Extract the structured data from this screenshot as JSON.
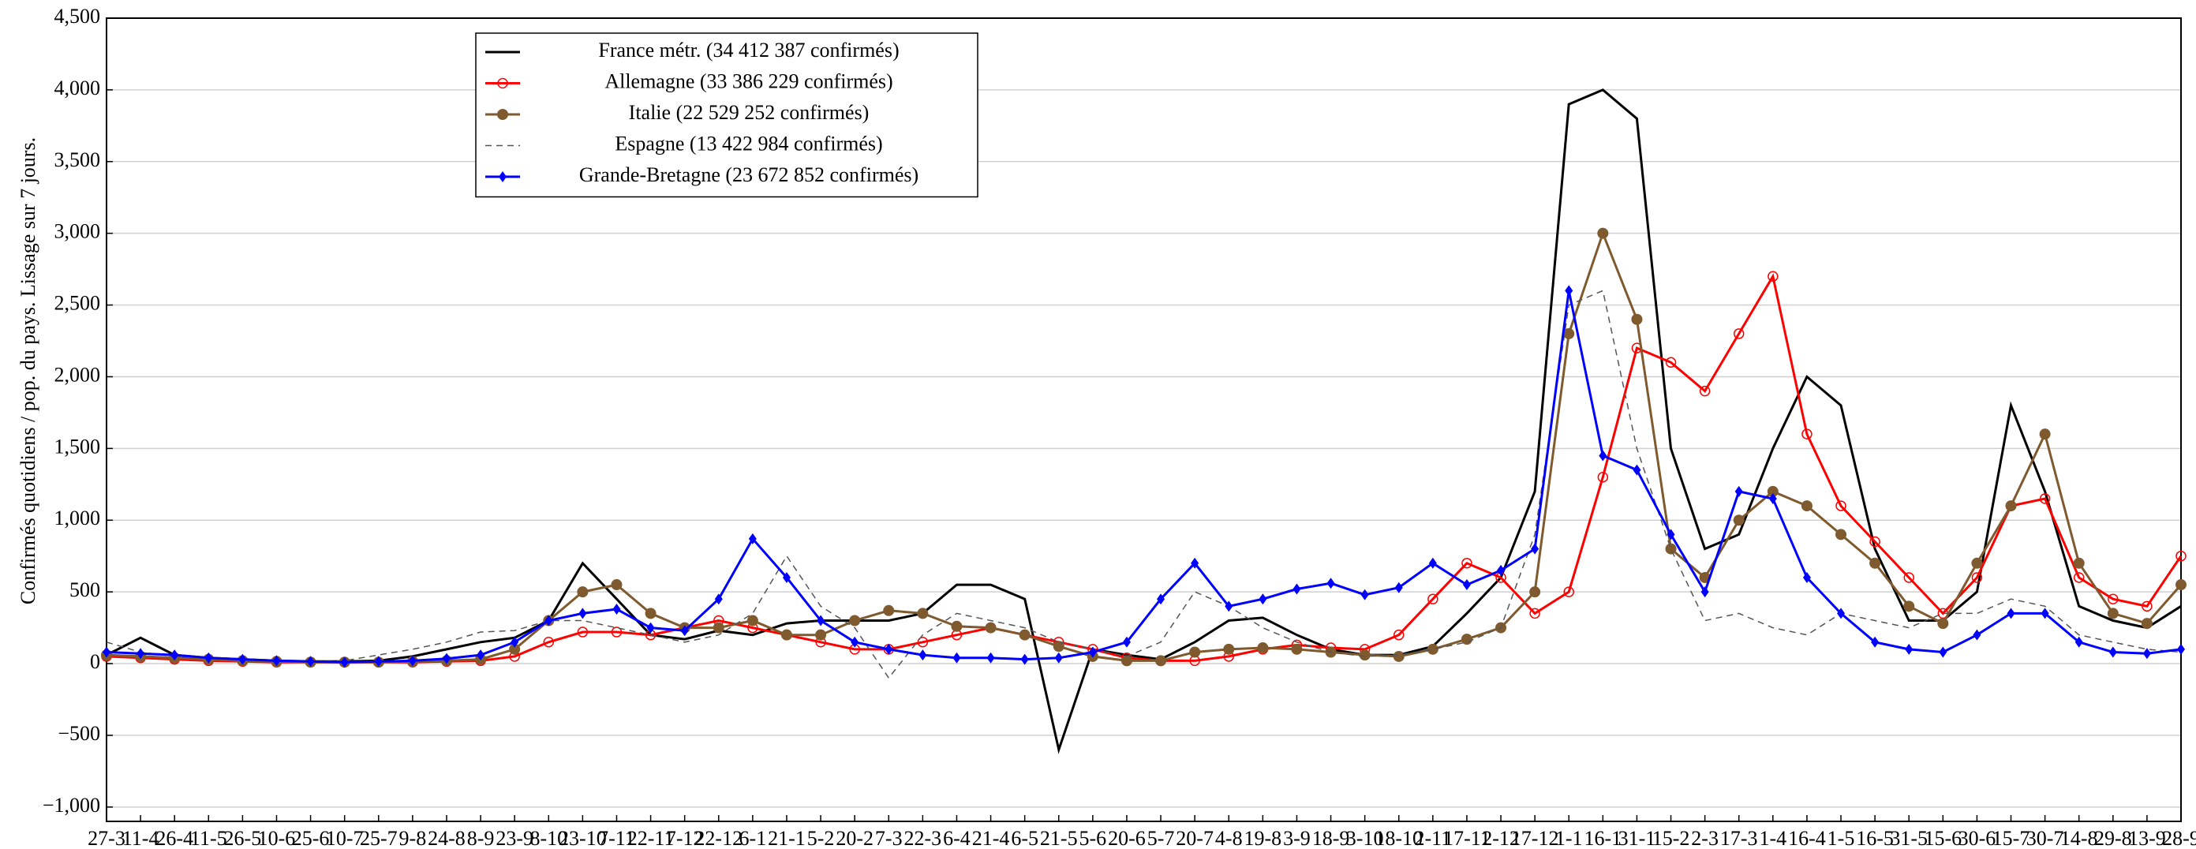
{
  "chart_data": {
    "type": "line",
    "y_label": "Confirmés quotidiens / pop. du pays. Lissage sur 7 jours.",
    "categories": [
      "27-3",
      "11-4",
      "26-4",
      "11-5",
      "26-5",
      "10-6",
      "25-6",
      "10-7",
      "25-7",
      "9-8",
      "24-8",
      "8-9",
      "23-9",
      "8-10",
      "23-10",
      "7-11",
      "22-11",
      "7-12",
      "22-12",
      "6-1",
      "21-1",
      "5-2",
      "20-2",
      "7-3",
      "22-3",
      "6-4",
      "21-4",
      "6-5",
      "21-5",
      "5-6",
      "20-6",
      "5-7",
      "20-7",
      "4-8",
      "19-8",
      "3-9",
      "18-9",
      "3-10",
      "18-10",
      "2-11",
      "17-11",
      "2-12",
      "17-12",
      "1-1",
      "16-1",
      "31-1",
      "15-2",
      "2-3",
      "17-3",
      "1-4",
      "16-4",
      "1-5",
      "16-5",
      "31-5",
      "15-6",
      "30-6",
      "15-7",
      "30-7",
      "14-8",
      "29-8",
      "13-9",
      "28-9"
    ],
    "series": [
      {
        "name": "France métr. (34 412 387 confirmés)",
        "color": "#000000",
        "marker": "none",
        "dash": false,
        "values": [
          60,
          180,
          60,
          40,
          30,
          20,
          15,
          15,
          20,
          50,
          100,
          150,
          180,
          300,
          700,
          450,
          200,
          170,
          230,
          200,
          280,
          300,
          300,
          300,
          350,
          550,
          550,
          450,
          -600,
          100,
          60,
          30,
          150,
          300,
          320,
          200,
          100,
          60,
          60,
          120,
          350,
          600,
          1200,
          3900,
          4000,
          3800,
          1500,
          800,
          900,
          1500,
          2000,
          1800,
          800,
          300,
          300,
          500,
          1800,
          1200,
          400,
          300,
          250,
          400
        ]
      },
      {
        "name": "Allemagne (33 386 229 confirmés)",
        "color": "#ff0000",
        "marker": "circle-open",
        "dash": false,
        "values": [
          50,
          40,
          30,
          20,
          15,
          10,
          10,
          10,
          10,
          10,
          15,
          20,
          50,
          150,
          220,
          220,
          200,
          250,
          300,
          250,
          200,
          150,
          100,
          100,
          150,
          200,
          250,
          200,
          150,
          100,
          40,
          20,
          20,
          50,
          100,
          130,
          110,
          100,
          200,
          450,
          700,
          600,
          350,
          500,
          1300,
          2200,
          2100,
          1900,
          2300,
          2700,
          1600,
          1100,
          850,
          600,
          350,
          600,
          1100,
          1150,
          600,
          450,
          400,
          750
        ]
      },
      {
        "name": "Italie (22 529 252 confirmés)",
        "color": "#7f5a2e",
        "marker": "circle",
        "dash": false,
        "values": [
          60,
          50,
          40,
          30,
          20,
          15,
          10,
          10,
          10,
          15,
          20,
          30,
          100,
          300,
          500,
          550,
          350,
          250,
          250,
          300,
          200,
          200,
          300,
          370,
          350,
          260,
          250,
          200,
          120,
          50,
          20,
          20,
          80,
          100,
          110,
          100,
          80,
          60,
          50,
          100,
          170,
          250,
          500,
          2300,
          3000,
          2400,
          800,
          600,
          1000,
          1200,
          1100,
          900,
          700,
          400,
          280,
          700,
          1100,
          1600,
          700,
          350,
          280,
          550
        ]
      },
      {
        "name": "Espagne (13 422 984 confirmés)",
        "color": "#555555",
        "marker": "none",
        "dash": true,
        "values": [
          150,
          80,
          50,
          40,
          25,
          20,
          15,
          20,
          60,
          100,
          150,
          220,
          230,
          300,
          300,
          250,
          200,
          150,
          200,
          350,
          750,
          400,
          250,
          -100,
          200,
          350,
          300,
          250,
          150,
          100,
          50,
          150,
          500,
          400,
          250,
          150,
          80,
          50,
          60,
          100,
          150,
          250,
          900,
          2500,
          2600,
          1500,
          800,
          300,
          350,
          250,
          200,
          350,
          300,
          250,
          350,
          350,
          450,
          400,
          200,
          150,
          100,
          80
        ]
      },
      {
        "name": "Grande-Bretagne (23 672 852 confirmés)",
        "color": "#0000ff",
        "marker": "diamond",
        "dash": false,
        "values": [
          80,
          70,
          60,
          40,
          30,
          20,
          15,
          10,
          15,
          20,
          35,
          60,
          150,
          300,
          350,
          380,
          250,
          230,
          450,
          870,
          600,
          300,
          150,
          100,
          60,
          40,
          40,
          30,
          40,
          80,
          150,
          450,
          700,
          400,
          450,
          520,
          560,
          480,
          530,
          700,
          550,
          650,
          800,
          2600,
          1450,
          1350,
          900,
          500,
          1200,
          1150,
          600,
          350,
          150,
          100,
          80,
          200,
          350,
          350,
          150,
          80,
          70,
          100
        ]
      }
    ],
    "ylim": [
      -1100,
      4500
    ],
    "yticks": [
      {
        "value": -1000,
        "label": "−1,000"
      },
      {
        "value": -500,
        "label": "−500"
      },
      0,
      500,
      {
        "value": 1000,
        "label": "1,000"
      },
      {
        "value": 1500,
        "label": "1,500"
      },
      {
        "value": 2000,
        "label": "2,000"
      },
      {
        "value": 2500,
        "label": "2,500"
      },
      {
        "value": 3000,
        "label": "3,000"
      },
      {
        "value": 3500,
        "label": "3,500"
      },
      {
        "value": 4000,
        "label": "4,000"
      },
      {
        "value": 4500,
        "label": "4,500"
      }
    ],
    "grid": true
  }
}
